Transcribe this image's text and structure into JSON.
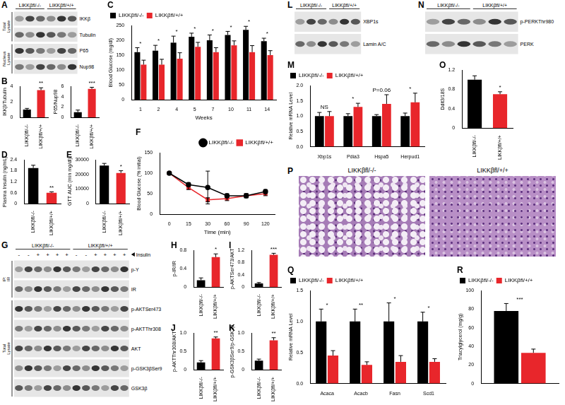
{
  "chart_data": [
    {
      "panel": "C",
      "type": "bar",
      "y_label": "Blood Glucose (mg/dl)",
      "x_label": "Weeks",
      "categories": [
        "1",
        "2",
        "4",
        "5",
        "7",
        "10",
        "11",
        "14"
      ],
      "series": [
        {
          "name": "LIKKβfl/-/-",
          "color": "#000000",
          "values": [
            160,
            165,
            192,
            212,
            200,
            218,
            235,
            197
          ],
          "errors": [
            15,
            18,
            22,
            12,
            18,
            12,
            12,
            10
          ]
        },
        {
          "name": "LIKKβfl/+/+",
          "color": "#e8262b",
          "values": [
            118,
            118,
            138,
            178,
            160,
            183,
            160,
            150
          ],
          "errors": [
            15,
            18,
            20,
            15,
            15,
            15,
            22,
            15
          ]
        }
      ],
      "ylim": [
        0,
        250
      ],
      "yticks": [
        0,
        50,
        100,
        150,
        200,
        250
      ],
      "significance": [
        "*",
        "*",
        "*",
        "*",
        "*",
        "*",
        "*",
        "*"
      ],
      "legend": "top-left"
    },
    {
      "panel": "B",
      "type": "bar",
      "y_label": "IKKβ/Tubulin",
      "categories": [
        "LIKKβfl/-/-",
        "LIKKβfl/+/+"
      ],
      "values": [
        1,
        3.5
      ],
      "errors": [
        0.15,
        0.3
      ],
      "colors": [
        "#000000",
        "#e8262b"
      ],
      "ylim": [
        0,
        4
      ],
      "yticks": [
        0,
        2,
        4
      ],
      "significance": [
        null,
        "**"
      ]
    },
    {
      "type": "bar",
      "y_label": "P65/Nup98",
      "categories": [
        "LIKKβfl/-/-",
        "LIKKβfl/+/+"
      ],
      "values": [
        1,
        5.5
      ],
      "errors": [
        0.4,
        0.3
      ],
      "colors": [
        "#000000",
        "#e8262b"
      ],
      "ylim": [
        0,
        6
      ],
      "yticks": [
        0,
        2,
        4,
        6
      ],
      "significance": [
        null,
        "***"
      ]
    },
    {
      "panel": "D",
      "type": "bar",
      "y_label": "Plasma Insulin (ng/mL)",
      "categories": [
        "LIKKβfl/-/-",
        "LIKKβfl/+/+"
      ],
      "values": [
        1.95,
        0.6
      ],
      "errors": [
        0.15,
        0.05
      ],
      "colors": [
        "#000000",
        "#e8262b"
      ],
      "ylim": [
        0,
        2.4
      ],
      "yticks": [
        0,
        0.6,
        1.2,
        1.8,
        2.4
      ],
      "significance": [
        null,
        "**"
      ]
    },
    {
      "panel": "E",
      "type": "bar",
      "y_label": "GTT AUC (min mg/dl)",
      "categories": [
        "LIKKβfl/-/-",
        "LIKKβfl/+/+"
      ],
      "values": [
        26000,
        21000
      ],
      "errors": [
        1500,
        1500
      ],
      "colors": [
        "#000000",
        "#e8262b"
      ],
      "ylim": [
        0,
        30000
      ],
      "yticks": [
        0,
        10000,
        20000,
        30000
      ],
      "significance": [
        null,
        "*"
      ]
    },
    {
      "panel": "F",
      "type": "line",
      "y_label": "Blood Glucose (% initial)",
      "x_label": "Time (min)",
      "categories": [
        "0",
        "15",
        "30",
        "60",
        "90",
        "120"
      ],
      "series": [
        {
          "name": "LIKKβfl/-/-",
          "color": "#000000",
          "marker": "circle",
          "values": [
            100,
            72,
            65,
            45,
            45,
            55
          ],
          "errors": [
            0,
            5,
            40,
            5,
            5,
            5
          ]
        },
        {
          "name": "LIKKβfl/+/+",
          "color": "#e8262b",
          "marker": "square",
          "values": [
            100,
            65,
            35,
            38,
            45,
            50
          ],
          "errors": [
            0,
            5,
            5,
            5,
            5,
            5
          ]
        }
      ],
      "ylim": [
        0,
        150
      ],
      "yticks": [
        0,
        50,
        100,
        150
      ],
      "legend": "top-right"
    },
    {
      "panel": "H",
      "type": "bar",
      "y_label": "p-IR/IR",
      "categories": [
        "LIKKβfl/-/-",
        "LIKKβfl/+/+"
      ],
      "values": [
        0.15,
        0.65
      ],
      "errors": [
        0.05,
        0.07
      ],
      "colors": [
        "#000000",
        "#e8262b"
      ],
      "ylim": [
        0,
        0.8
      ],
      "yticks": [
        0,
        0.4,
        0.8
      ],
      "significance": [
        null,
        "*"
      ]
    },
    {
      "panel": "I",
      "type": "bar",
      "y_label": "p-AKTSer473/AKT",
      "categories": [
        "LIKKβfl/-/-",
        "LIKKβfl/+/+"
      ],
      "values": [
        0.12,
        1.05
      ],
      "errors": [
        0.03,
        0.05
      ],
      "colors": [
        "#000000",
        "#e8262b"
      ],
      "ylim": [
        0,
        1.2
      ],
      "yticks": [
        0,
        0.4,
        0.8,
        1.2
      ],
      "significance": [
        null,
        "***"
      ]
    },
    {
      "panel": "J",
      "type": "bar",
      "y_label": "p-AKTThr308/AKT",
      "categories": [
        "LIKKβfl/-/-",
        "LIKKβfl/+/+"
      ],
      "values": [
        0.2,
        0.85
      ],
      "errors": [
        0.05,
        0.04
      ],
      "colors": [
        "#000000",
        "#e8262b"
      ],
      "ylim": [
        0,
        1
      ],
      "yticks": [
        0,
        0.5,
        {
          "value": 1,
          "label": "1.0"
        }
      ],
      "significance": [
        null,
        "**"
      ]
    },
    {
      "panel": "K",
      "type": "bar",
      "y_label": "p-GSK3βSer9/p-GSK3β",
      "categories": [
        "LIKKβfl/-/-",
        "LIKKβfl/+/+"
      ],
      "values": [
        0.25,
        0.8
      ],
      "errors": [
        0.04,
        0.07
      ],
      "colors": [
        "#000000",
        "#e8262b"
      ],
      "ylim": [
        0,
        1
      ],
      "yticks": [
        0,
        0.5,
        {
          "value": 1,
          "label": "1.0"
        }
      ],
      "significance": [
        null,
        "**"
      ]
    },
    {
      "panel": "M",
      "type": "bar",
      "y_label": "Relative mRNA Level",
      "categories": [
        "Xbp1s",
        "Pdia3",
        "Hspa5",
        "Herpud1"
      ],
      "series": [
        {
          "name": "LIKKβfl/-/-",
          "color": "#000000",
          "values": [
            1,
            1,
            1,
            1
          ],
          "errors": [
            0.12,
            0.08,
            0.05,
            0.1
          ]
        },
        {
          "name": "LIKKβfl/+/+",
          "color": "#e8262b",
          "values": [
            1,
            1.3,
            1.4,
            1.45
          ],
          "errors": [
            0.15,
            0.12,
            0.3,
            0.3
          ]
        }
      ],
      "ylim": [
        0,
        2
      ],
      "yticks": [
        {
          "value": 0,
          "label": "0.0"
        },
        0.5,
        {
          "value": 1,
          "label": "1.0"
        },
        1.5,
        {
          "value": 2,
          "label": "2.0"
        }
      ],
      "significance": [
        "NS",
        "*",
        "P=0.06",
        "*"
      ],
      "legend": "top-left"
    },
    {
      "panel": "O",
      "type": "bar",
      "y_label": "Ddit3/18S",
      "categories": [
        "LIKKβfl/-/-",
        "LIKKβfl/+/+"
      ],
      "values": [
        1,
        0.7
      ],
      "errors": [
        0.08,
        0.05
      ],
      "colors": [
        "#000000",
        "#e8262b"
      ],
      "ylim": [
        0,
        1.2
      ],
      "yticks": [
        0,
        0.4,
        0.8,
        1.2
      ],
      "significance": [
        null,
        "*"
      ]
    },
    {
      "panel": "Q",
      "type": "bar",
      "y_label": "Relative mRNA Level",
      "categories": [
        "Acaca",
        "Acacb",
        "Fasn",
        "Scd1"
      ],
      "series": [
        {
          "name": "LIKKβfl/-/-",
          "color": "#000000",
          "values": [
            1,
            1,
            1,
            1
          ],
          "errors": [
            0.2,
            0.2,
            0.3,
            0.15
          ]
        },
        {
          "name": "LIKKβfl/+/+",
          "color": "#e8262b",
          "values": [
            0.45,
            0.3,
            0.35,
            0.35
          ],
          "errors": [
            0.08,
            0.05,
            0.1,
            0.05
          ]
        }
      ],
      "ylim": [
        0,
        1.5
      ],
      "yticks": [
        {
          "value": 0,
          "label": "0.0"
        },
        0.5,
        {
          "value": 1,
          "label": "1.0"
        },
        1.5
      ],
      "significance": [
        "*",
        "**",
        "*",
        "*"
      ],
      "legend": "top-left"
    },
    {
      "panel": "R",
      "type": "bar",
      "y_label": "Triacylglycerol (mg/g)",
      "categories": [
        null
      ],
      "series": [
        {
          "name": "LIKKβfl/-/-",
          "color": "#000000",
          "values": [
            78
          ],
          "errors": [
            8
          ]
        },
        {
          "name": "LIKKβfl/+/+",
          "color": "#e8262b",
          "values": [
            33
          ],
          "errors": [
            4
          ]
        }
      ],
      "ylim": [
        0,
        100
      ],
      "yticks": [
        0,
        20,
        40,
        60,
        80,
        100
      ],
      "significance": [
        "***"
      ],
      "legend": "top-left"
    }
  ],
  "blots": [
    {
      "panel": "A",
      "groups": [
        "LIKKβfl/-/-",
        "LIKKβfl/+/+"
      ],
      "sections": [
        {
          "label": "Total Lysate",
          "rows": [
            "IKKβ",
            "Tubulin"
          ]
        },
        {
          "label": "Nucleus Lysate",
          "rows": [
            "P65",
            "Nup98"
          ]
        }
      ]
    },
    {
      "panel": "G",
      "groups": [
        "LIKKβfl/-/-",
        "LIKKβfl/+/+"
      ],
      "treatment": {
        "label": "Insulin",
        "marks": [
          "-",
          "-",
          "+",
          "+",
          "+",
          "+",
          "-",
          "-",
          "+",
          "+",
          "+",
          "+"
        ]
      },
      "sections": [
        {
          "label": "IP: IR",
          "rows": [
            "p-Y",
            "IR"
          ]
        },
        {
          "label": "Total Lysate",
          "rows": [
            "p-AKTSer473",
            "p-AKTThr308",
            "AKT",
            "p-GSK3βSer9",
            "GSK3β"
          ]
        }
      ]
    },
    {
      "panel": "L",
      "groups": [
        "LIKKβfl/-/-",
        "LIKKβfl/+/+"
      ],
      "sections": [
        {
          "rows": [
            "XBP1s",
            "Lamin A/C"
          ]
        }
      ]
    },
    {
      "panel": "N",
      "groups": [
        "LIKKβfl/-/-",
        "LIKKβfl/+/+"
      ],
      "sections": [
        {
          "rows": [
            "p-PERKThr980",
            "PERK"
          ]
        }
      ]
    }
  ],
  "histology": {
    "panel": "P",
    "labels": [
      "LIKKβfl/-/-",
      "LIKKβfl/+/+"
    ]
  }
}
